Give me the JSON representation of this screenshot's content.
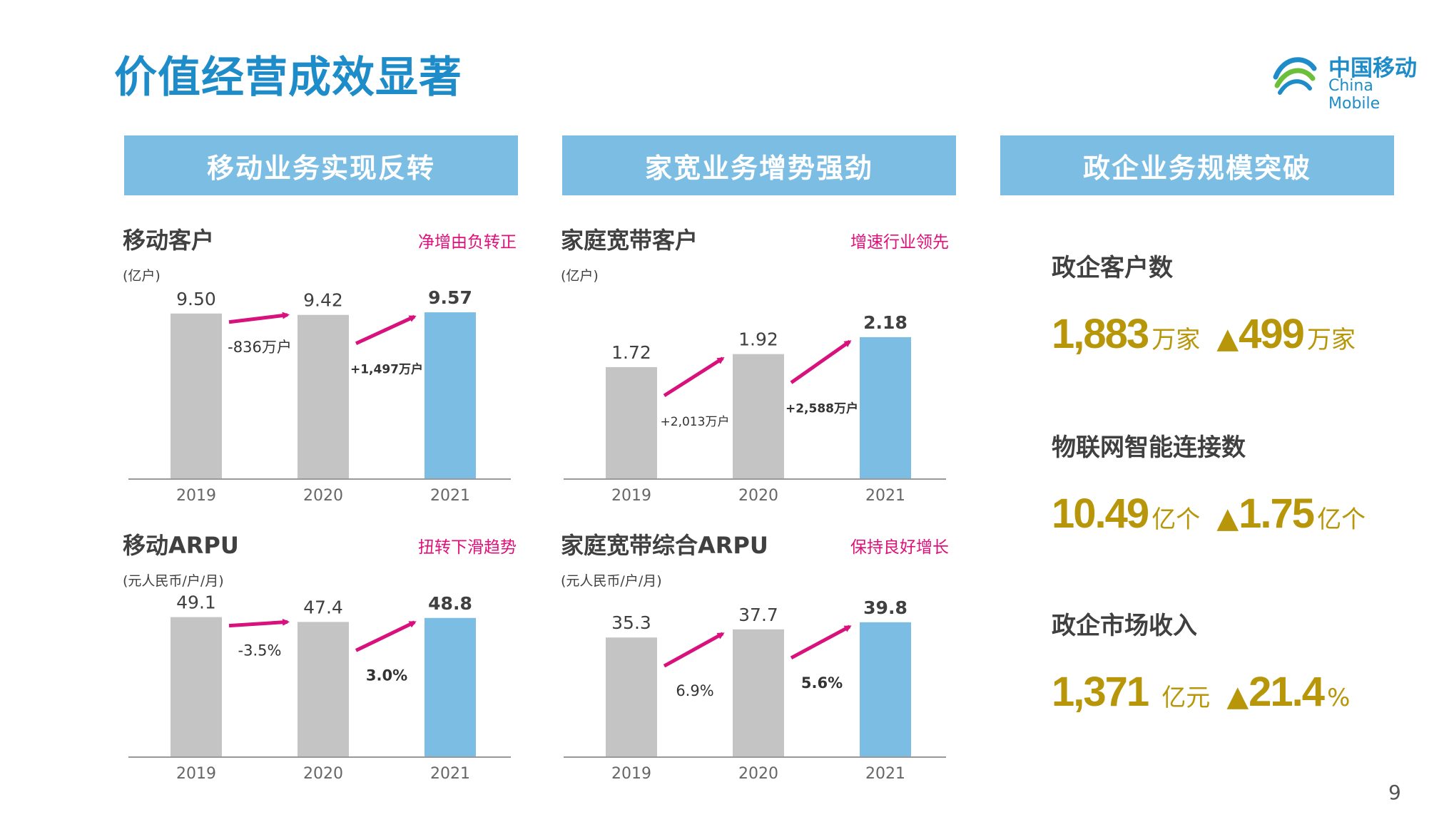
{
  "title": "价值经营成效显著",
  "logo": {
    "cn": "中国移动",
    "en": "China Mobile"
  },
  "page_number": "9",
  "sections": [
    {
      "band": "移动业务实现反转"
    },
    {
      "band": "家宽业务增势强劲"
    },
    {
      "band": "政企业务规模突破"
    }
  ],
  "colors": {
    "bar_gray": "#c4c4c4",
    "bar_blue": "#7bbde3",
    "arrow": "#d8117c",
    "accent_gold": "#b8960a",
    "title_blue": "#1e8cc8"
  },
  "charts": [
    {
      "id": "mobile-customers",
      "title": "移动客户",
      "unit": "(亿户)",
      "tag": "净增由负转正",
      "chart_data": {
        "type": "bar",
        "categories": [
          "2019",
          "2020",
          "2021"
        ],
        "values": [
          9.5,
          9.42,
          9.57
        ],
        "value_labels": [
          "9.50",
          "9.42",
          "9.57"
        ],
        "highlight_last": true,
        "ylim": [
          0,
          9.9
        ],
        "changes": [
          "-836万户",
          "+1,497万户"
        ],
        "changes_bold": [
          false,
          true
        ]
      }
    },
    {
      "id": "broadband-customers",
      "title": "家庭宽带客户",
      "unit": "(亿户)",
      "tag": "增速行业领先",
      "chart_data": {
        "type": "bar",
        "categories": [
          "2019",
          "2020",
          "2021"
        ],
        "values": [
          1.72,
          1.92,
          2.18
        ],
        "value_labels": [
          "1.72",
          "1.92",
          "2.18"
        ],
        "highlight_last": true,
        "ylim": [
          0,
          2.65
        ],
        "changes": [
          "+2,013万户",
          "+2,588万户"
        ],
        "changes_bold": [
          false,
          true
        ]
      }
    },
    {
      "id": "mobile-arpu",
      "title": "移动ARPU",
      "unit": "(元人民币/户/月)",
      "tag": "扭转下滑趋势",
      "chart_data": {
        "type": "bar",
        "categories": [
          "2019",
          "2020",
          "2021"
        ],
        "values": [
          49.1,
          47.4,
          48.8
        ],
        "value_labels": [
          "49.1",
          "47.4",
          "48.8"
        ],
        "highlight_last": true,
        "ylim": [
          0,
          50.5
        ],
        "changes": [
          "-3.5%",
          "3.0%"
        ],
        "changes_bold": [
          false,
          true
        ]
      }
    },
    {
      "id": "broadband-arpu",
      "title": "家庭宽带综合ARPU",
      "unit": "(元人民币/户/月)",
      "tag": "保持良好增长",
      "chart_data": {
        "type": "bar",
        "categories": [
          "2019",
          "2020",
          "2021"
        ],
        "values": [
          35.3,
          37.7,
          39.8
        ],
        "value_labels": [
          "35.3",
          "37.7",
          "39.8"
        ],
        "highlight_last": true,
        "ylim": [
          0,
          42.5
        ],
        "changes": [
          "6.9%",
          "5.6%"
        ],
        "changes_bold": [
          false,
          true
        ]
      }
    }
  ],
  "enterprise": [
    {
      "label": "政企客户数",
      "value": "1,883",
      "unit": "万家",
      "growth": "499",
      "growth_unit": "万家"
    },
    {
      "label": "物联网智能连接数",
      "value": "10.49",
      "unit": "亿个",
      "growth": "1.75",
      "growth_unit": "亿个"
    },
    {
      "label": "政企市场收入",
      "value": "1,371",
      "unit": "亿元",
      "growth": "21.4",
      "growth_unit": "%"
    }
  ]
}
